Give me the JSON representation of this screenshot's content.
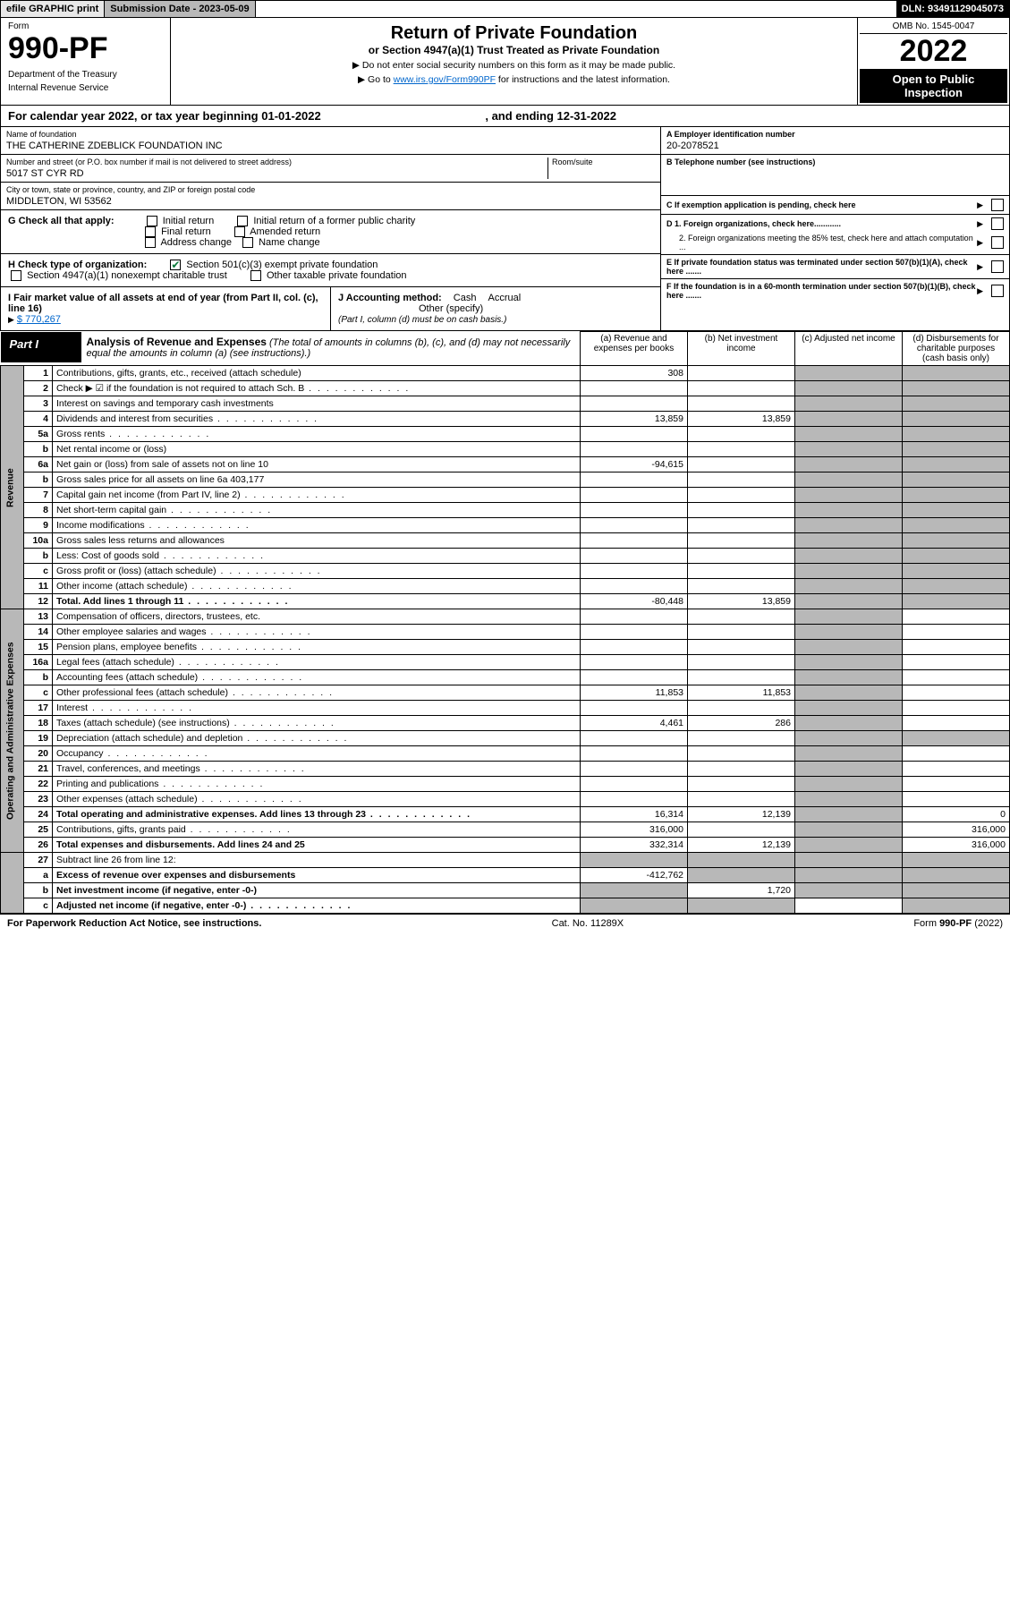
{
  "header": {
    "efile": "efile GRAPHIC print",
    "submission_label": "Submission Date - 2023-05-09",
    "dln_label": "DLN: 93491129045073"
  },
  "title": {
    "form_word": "Form",
    "form_no": "990-PF",
    "dept1": "Department of the Treasury",
    "dept2": "Internal Revenue Service",
    "main": "Return of Private Foundation",
    "sub": "or Section 4947(a)(1) Trust Treated as Private Foundation",
    "note1": "▶ Do not enter social security numbers on this form as it may be made public.",
    "note2_pre": "▶ Go to ",
    "note2_link": "www.irs.gov/Form990PF",
    "note2_post": " for instructions and the latest information.",
    "omb": "OMB No. 1545-0047",
    "year": "2022",
    "open": "Open to Public Inspection"
  },
  "cal_year": {
    "pre": "For calendar year 2022, or tax year beginning ",
    "begin": "01-01-2022",
    "mid": " , and ending ",
    "end": "12-31-2022"
  },
  "id": {
    "name_lbl": "Name of foundation",
    "name": "THE CATHERINE ZDEBLICK FOUNDATION INC",
    "addr_lbl": "Number and street (or P.O. box number if mail is not delivered to street address)",
    "addr": "5017 ST CYR RD",
    "room_lbl": "Room/suite",
    "city_lbl": "City or town, state or province, country, and ZIP or foreign postal code",
    "city": "MIDDLETON, WI  53562",
    "a_lbl": "A Employer identification number",
    "a_val": "20-2078521",
    "b_lbl": "B Telephone number (see instructions)",
    "c_lbl": "C If exemption application is pending, check here",
    "d1": "D 1. Foreign organizations, check here............",
    "d2": "2. Foreign organizations meeting the 85% test, check here and attach computation ...",
    "e_lbl": "E  If private foundation status was terminated under section 507(b)(1)(A), check here .......",
    "f_lbl": "F  If the foundation is in a 60-month termination under section 507(b)(1)(B), check here ......."
  },
  "checks": {
    "g_lbl": "G Check all that apply:",
    "g_opts": [
      "Initial return",
      "Initial return of a former public charity",
      "Final return",
      "Amended return",
      "Address change",
      "Name change"
    ],
    "h_lbl": "H Check type of organization:",
    "h_501c3": "Section 501(c)(3) exempt private foundation",
    "h_4947": "Section 4947(a)(1) nonexempt charitable trust",
    "h_other": "Other taxable private foundation",
    "i_lbl": "I Fair market value of all assets at end of year (from Part II, col. (c), line 16)",
    "i_val": "$  770,267",
    "j_lbl": "J Accounting method:",
    "j_cash": "Cash",
    "j_accr": "Accrual",
    "j_other": "Other (specify)",
    "j_note": "(Part I, column (d) must be on cash basis.)"
  },
  "part1": {
    "label": "Part I",
    "title": "Analysis of Revenue and Expenses",
    "title_note": " (The total of amounts in columns (b), (c), and (d) may not necessarily equal the amounts in column (a) (see instructions).)",
    "col_a": "(a)   Revenue and expenses per books",
    "col_b": "(b)   Net investment income",
    "col_c": "(c)   Adjusted net income",
    "col_d": "(d)   Disbursements for charitable purposes (cash basis only)"
  },
  "side": {
    "rev": "Revenue",
    "exp": "Operating and Administrative Expenses"
  },
  "rows": [
    {
      "n": "1",
      "d": "Contributions, gifts, grants, etc., received (attach schedule)",
      "a": "308"
    },
    {
      "n": "2",
      "d": "Check ▶ ☑ if the foundation is not required to attach Sch. B",
      "dots": true
    },
    {
      "n": "3",
      "d": "Interest on savings and temporary cash investments"
    },
    {
      "n": "4",
      "d": "Dividends and interest from securities",
      "a": "13,859",
      "b": "13,859",
      "dots": true
    },
    {
      "n": "5a",
      "d": "Gross rents",
      "dots": true
    },
    {
      "n": "b",
      "d": "Net rental income or (loss)"
    },
    {
      "n": "6a",
      "d": "Net gain or (loss) from sale of assets not on line 10",
      "a": "-94,615"
    },
    {
      "n": "b",
      "d": "Gross sales price for all assets on line 6a          403,177"
    },
    {
      "n": "7",
      "d": "Capital gain net income (from Part IV, line 2)",
      "dots": true
    },
    {
      "n": "8",
      "d": "Net short-term capital gain",
      "dots": true
    },
    {
      "n": "9",
      "d": "Income modifications",
      "dots": true
    },
    {
      "n": "10a",
      "d": "Gross sales less returns and allowances"
    },
    {
      "n": "b",
      "d": "Less: Cost of goods sold",
      "dots": true
    },
    {
      "n": "c",
      "d": "Gross profit or (loss) (attach schedule)",
      "dots": true
    },
    {
      "n": "11",
      "d": "Other income (attach schedule)",
      "dots": true
    },
    {
      "n": "12",
      "d": "Total. Add lines 1 through 11",
      "a": "-80,448",
      "b": "13,859",
      "bold": true,
      "dots": true
    }
  ],
  "exp_rows": [
    {
      "n": "13",
      "d": "Compensation of officers, directors, trustees, etc."
    },
    {
      "n": "14",
      "d": "Other employee salaries and wages",
      "dots": true
    },
    {
      "n": "15",
      "d": "Pension plans, employee benefits",
      "dots": true
    },
    {
      "n": "16a",
      "d": "Legal fees (attach schedule)",
      "dots": true
    },
    {
      "n": "b",
      "d": "Accounting fees (attach schedule)",
      "dots": true
    },
    {
      "n": "c",
      "d": "Other professional fees (attach schedule)",
      "a": "11,853",
      "b": "11,853",
      "dots": true
    },
    {
      "n": "17",
      "d": "Interest",
      "dots": true
    },
    {
      "n": "18",
      "d": "Taxes (attach schedule) (see instructions)",
      "a": "4,461",
      "b": "286",
      "dots": true
    },
    {
      "n": "19",
      "d": "Depreciation (attach schedule) and depletion",
      "dots": true
    },
    {
      "n": "20",
      "d": "Occupancy",
      "dots": true
    },
    {
      "n": "21",
      "d": "Travel, conferences, and meetings",
      "dots": true
    },
    {
      "n": "22",
      "d": "Printing and publications",
      "dots": true
    },
    {
      "n": "23",
      "d": "Other expenses (attach schedule)",
      "dots": true
    },
    {
      "n": "24",
      "d": "Total operating and administrative expenses. Add lines 13 through 23",
      "a": "16,314",
      "b": "12,139",
      "dd": "0",
      "bold": true,
      "dots": true
    },
    {
      "n": "25",
      "d": "Contributions, gifts, grants paid",
      "a": "316,000",
      "dd": "316,000",
      "dots": true
    },
    {
      "n": "26",
      "d": "Total expenses and disbursements. Add lines 24 and 25",
      "a": "332,314",
      "b": "12,139",
      "dd": "316,000",
      "bold": true
    }
  ],
  "net_rows": [
    {
      "n": "27",
      "d": "Subtract line 26 from line 12:"
    },
    {
      "n": "a",
      "d": "Excess of revenue over expenses and disbursements",
      "a": "-412,762",
      "bold": true
    },
    {
      "n": "b",
      "d": "Net investment income (if negative, enter -0-)",
      "b": "1,720",
      "bold": true
    },
    {
      "n": "c",
      "d": "Adjusted net income (if negative, enter -0-)",
      "bold": true,
      "dots": true
    }
  ],
  "footer": {
    "left": "For Paperwork Reduction Act Notice, see instructions.",
    "mid": "Cat. No. 11289X",
    "right": "Form 990-PF (2022)"
  }
}
